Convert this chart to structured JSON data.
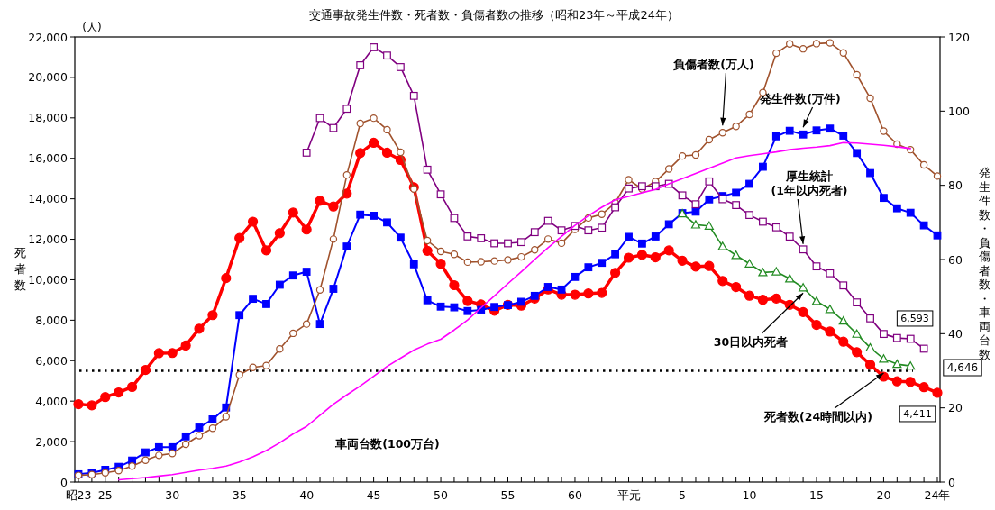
{
  "chart_data": {
    "type": "line",
    "title": "交通事故発生件数・死者数・負傷者数の推移（昭和23年～平成24年）",
    "ylabel": "死者数",
    "y2label": "発生件数・負傷者数・車両台数",
    "annotations": [
      "(人)",
      "4,646"
    ],
    "categories": [
      "昭23",
      null,
      "25",
      null,
      null,
      null,
      null,
      "30",
      null,
      null,
      null,
      null,
      "35",
      null,
      null,
      null,
      null,
      "40",
      null,
      null,
      null,
      null,
      "45",
      null,
      null,
      null,
      null,
      "50",
      null,
      null,
      null,
      null,
      "55",
      null,
      null,
      null,
      null,
      "60",
      null,
      null,
      null,
      "平元",
      null,
      null,
      null,
      "5",
      null,
      null,
      null,
      null,
      "10",
      null,
      null,
      null,
      null,
      "15",
      null,
      null,
      null,
      null,
      "20",
      null,
      null,
      null,
      "24年"
    ],
    "ylim": [
      0,
      22000
    ],
    "yticks": [
      {
        "value": 0,
        "label": "0"
      },
      {
        "value": 2000,
        "label": "2,000"
      },
      {
        "value": 4000,
        "label": "4,000"
      },
      {
        "value": 6000,
        "label": "6,000"
      },
      {
        "value": 8000,
        "label": "8,000"
      },
      {
        "value": 10000,
        "label": "10,000"
      },
      {
        "value": 12000,
        "label": "12,000"
      },
      {
        "value": 14000,
        "label": "14,000"
      },
      {
        "value": 16000,
        "label": "16,000"
      },
      {
        "value": 18000,
        "label": "18,000"
      },
      {
        "value": 20000,
        "label": "20,000"
      },
      {
        "value": 22000,
        "label": "22,000"
      }
    ],
    "y2lim": [
      0,
      120
    ],
    "y2ticks": [
      0,
      20,
      40,
      60,
      80,
      100,
      120
    ],
    "grid": false,
    "legend": false,
    "line_style": "solid",
    "ref_lines": [
      {
        "axis": "y",
        "value": 5500,
        "line_style": "dotted",
        "color": "#000000"
      }
    ],
    "series": [
      {
        "name": "死者数(24時間以内)",
        "color": "#ff0000",
        "marker": "circle",
        "values": [
          3850,
          3790,
          4200,
          4430,
          4700,
          5540,
          6370,
          6380,
          6750,
          7580,
          8250,
          10080,
          12060,
          12870,
          11450,
          12300,
          13320,
          12480,
          13900,
          13620,
          14260,
          16260,
          16770,
          16280,
          15920,
          14570,
          11430,
          10790,
          9730,
          8950,
          8780,
          8470,
          8760,
          8720,
          9070,
          9520,
          9260,
          9260,
          9320,
          9350,
          10340,
          11090,
          11230,
          11110,
          11450,
          10940,
          10650,
          10680,
          9940,
          9640,
          9210,
          9010,
          9070,
          8760,
          8400,
          7770,
          7440,
          6940,
          6420,
          5800,
          5210,
          4980,
          4950,
          4690,
          4411
        ],
        "value_labels": [
          null,
          null,
          null,
          null,
          null,
          null,
          null,
          null,
          null,
          null,
          null,
          null,
          null,
          null,
          null,
          null,
          null,
          null,
          null,
          null,
          null,
          null,
          null,
          null,
          null,
          null,
          null,
          null,
          null,
          null,
          null,
          null,
          null,
          null,
          null,
          null,
          null,
          null,
          null,
          null,
          null,
          null,
          null,
          null,
          null,
          null,
          null,
          null,
          null,
          null,
          null,
          null,
          null,
          null,
          null,
          null,
          null,
          null,
          null,
          null,
          null,
          null,
          null,
          null,
          "4,411"
        ]
      },
      {
        "name": "発生件数(万件)",
        "color": "#0000ff",
        "marker": "square",
        "axis": "y2",
        "values": [
          2.1,
          2.5,
          3.3,
          4.1,
          5.8,
          8.0,
          9.4,
          9.4,
          12.3,
          14.7,
          16.9,
          20.1,
          45.0,
          49.4,
          48.0,
          53.2,
          55.7,
          56.7,
          42.6,
          52.1,
          63.5,
          72.1,
          71.8,
          70.0,
          65.9,
          58.7,
          49.0,
          47.3,
          47.1,
          46.1,
          46.4,
          47.2,
          47.7,
          48.6,
          50.2,
          52.6,
          51.9,
          55.3,
          57.9,
          59.1,
          61.4,
          66.1,
          64.3,
          66.2,
          69.5,
          72.5,
          72.9,
          76.2,
          77.1,
          78.0,
          80.4,
          85.0,
          93.2,
          94.7,
          93.7,
          94.8,
          95.3,
          93.4,
          88.7,
          83.3,
          76.6,
          73.8,
          72.6,
          69.2,
          66.5
        ]
      },
      {
        "name": "負傷者数(万人)",
        "color": "#a0522d",
        "marker": "circle",
        "axis": "y2",
        "values": [
          1.8,
          2.0,
          2.5,
          3.1,
          4.3,
          5.9,
          7.2,
          7.7,
          10.2,
          12.5,
          14.5,
          17.6,
          28.9,
          30.9,
          31.4,
          35.9,
          40.1,
          42.6,
          51.8,
          65.5,
          82.8,
          96.7,
          98.1,
          95.0,
          88.9,
          79.0,
          65.1,
          62.2,
          61.4,
          59.3,
          59.4,
          59.6,
          59.9,
          60.7,
          62.6,
          65.5,
          64.4,
          68.1,
          71.2,
          72.2,
          75.3,
          81.5,
          79.0,
          81.0,
          84.4,
          87.9,
          88.2,
          92.3,
          94.2,
          95.9,
          99.1,
          105.0,
          115.6,
          118.1,
          116.8,
          118.2,
          118.4,
          115.7,
          109.8,
          103.5,
          94.6,
          91.1,
          89.6,
          85.5,
          82.5
        ]
      },
      {
        "name": "厚生統計\n(1年以内死者)",
        "color": "#800080",
        "marker": "square",
        "values": [
          null,
          null,
          null,
          null,
          null,
          null,
          null,
          null,
          null,
          null,
          null,
          null,
          null,
          null,
          null,
          null,
          null,
          16280,
          17990,
          17500,
          18450,
          20600,
          21490,
          21080,
          20510,
          19090,
          15440,
          14220,
          13050,
          12140,
          12050,
          11800,
          11800,
          11860,
          12350,
          12910,
          12440,
          12660,
          12440,
          12570,
          13580,
          14510,
          14620,
          14620,
          14740,
          14170,
          13730,
          14860,
          13980,
          13690,
          13200,
          12870,
          12590,
          12130,
          11500,
          10660,
          10320,
          9720,
          8880,
          8090,
          7320,
          7120,
          7080,
          6593,
          null
        ],
        "value_labels": [
          null,
          null,
          null,
          null,
          null,
          null,
          null,
          null,
          null,
          null,
          null,
          null,
          null,
          null,
          null,
          null,
          null,
          null,
          null,
          null,
          null,
          null,
          null,
          null,
          null,
          null,
          null,
          null,
          null,
          null,
          null,
          null,
          null,
          null,
          null,
          null,
          null,
          null,
          null,
          null,
          null,
          null,
          null,
          null,
          null,
          null,
          null,
          null,
          null,
          null,
          null,
          null,
          null,
          null,
          null,
          null,
          null,
          null,
          null,
          null,
          null,
          null,
          null,
          "6,593",
          null
        ]
      },
      {
        "name": "30日以内死者",
        "color": "#228b22",
        "marker": "triangle",
        "values": [
          null,
          null,
          null,
          null,
          null,
          null,
          null,
          null,
          null,
          null,
          null,
          null,
          null,
          null,
          null,
          null,
          null,
          null,
          null,
          null,
          null,
          null,
          null,
          null,
          null,
          null,
          null,
          null,
          null,
          null,
          null,
          null,
          null,
          null,
          null,
          null,
          null,
          null,
          null,
          null,
          null,
          null,
          null,
          null,
          null,
          13270,
          12720,
          12660,
          11650,
          11210,
          10790,
          10360,
          10400,
          10050,
          9610,
          8940,
          8540,
          7970,
          7320,
          6640,
          6090,
          5830,
          5740,
          null,
          null
        ]
      },
      {
        "name": "車両台数(100万台)",
        "color": "#ff00ff",
        "marker": "none",
        "axis": "y2",
        "values": [
          null,
          null,
          null,
          0.6,
          0.9,
          1.2,
          1.6,
          2.0,
          2.6,
          3.2,
          3.7,
          4.3,
          5.4,
          6.8,
          8.5,
          10.6,
          13.0,
          15.0,
          18.0,
          21.0,
          23.5,
          25.9,
          28.5,
          31.2,
          33.4,
          35.6,
          37.2,
          38.5,
          41.0,
          43.7,
          47.0,
          50.2,
          53.5,
          56.7,
          60.0,
          63.2,
          66.2,
          69.2,
          71.8,
          74.1,
          76.1,
          77.0,
          78.0,
          78.9,
          80.4,
          81.8,
          83.2,
          84.6,
          86.0,
          87.4,
          88.0,
          88.5,
          89.0,
          89.6,
          90.0,
          90.3,
          90.7,
          91.5,
          91.4,
          91.1,
          90.8,
          90.4,
          89.9,
          null,
          null
        ]
      }
    ]
  }
}
